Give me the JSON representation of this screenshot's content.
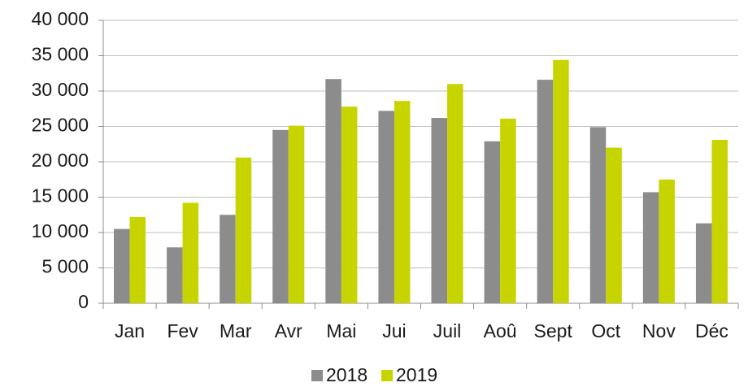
{
  "chart_data": {
    "type": "bar",
    "categories": [
      "Jan",
      "Fev",
      "Mar",
      "Avr",
      "Mai",
      "Jui",
      "Juil",
      "Aoû",
      "Sept",
      "Oct",
      "Nov",
      "Déc"
    ],
    "series": [
      {
        "name": "2018",
        "color": "#8c8c8c",
        "values": [
          10500,
          7900,
          12500,
          24500,
          31700,
          27200,
          26200,
          22900,
          31600,
          24900,
          15700,
          11300
        ]
      },
      {
        "name": "2019",
        "color": "#c8d400",
        "values": [
          12200,
          14200,
          20600,
          25100,
          27800,
          28600,
          31000,
          26100,
          34400,
          22000,
          17500,
          23100
        ]
      }
    ],
    "ylim": [
      0,
      40000
    ],
    "yticks": [
      0,
      {
        "value": 5000,
        "label": "5 000"
      },
      {
        "value": 10000,
        "label": "10 000"
      },
      {
        "value": 15000,
        "label": "15 000"
      },
      {
        "value": 20000,
        "label": "20 000"
      },
      {
        "value": 25000,
        "label": "25 000"
      },
      {
        "value": 30000,
        "label": "30 000"
      },
      {
        "value": 35000,
        "label": "35 000"
      },
      {
        "value": 40000,
        "label": "40 000"
      }
    ],
    "grid": true,
    "legend": "bottom"
  }
}
